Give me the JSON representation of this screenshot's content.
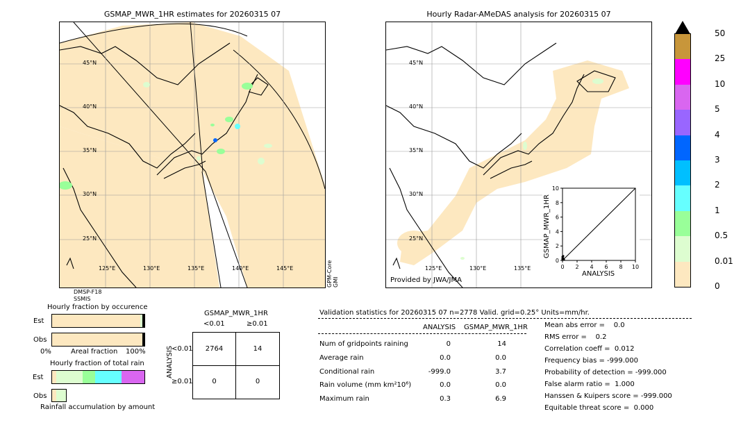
{
  "left_map": {
    "title": "GSMAP_MWR_1HR estimates for 20260315 07",
    "lat_labels": [
      "45°N",
      "40°N",
      "35°N",
      "30°N",
      "25°N"
    ],
    "lon_labels": [
      "125°E",
      "130°E",
      "135°E",
      "140°E",
      "145°E"
    ],
    "sensor_bottom": "DMSP-F18\nSSMIS",
    "sensor_right": "GPM-Core\nGMI"
  },
  "right_map": {
    "title": "Hourly Radar-AMeDAS analysis for 20260315 07",
    "lat_labels": [
      "45°N",
      "40°N",
      "35°N",
      "30°N",
      "25°N"
    ],
    "lon_labels": [
      "125°E",
      "130°E",
      "135°E"
    ],
    "credit": "Provided by JWA/JMA"
  },
  "colorbar": {
    "ticks": [
      "50",
      "25",
      "10",
      "5",
      "4",
      "3",
      "2",
      "1",
      "0.5",
      "0.01",
      "0"
    ],
    "colors": [
      "#c8963a",
      "#ff00ff",
      "#d966f0",
      "#9966ff",
      "#0066ff",
      "#00bfff",
      "#66ffff",
      "#99ff99",
      "#ddfdd0",
      "#fde8c0"
    ]
  },
  "occurrence": {
    "title": "Hourly fraction by occurence",
    "row_est": "Est",
    "row_obs": "Obs",
    "axis_left": "0%",
    "axis_mid": "Areal fraction",
    "axis_right": "100%"
  },
  "rain_fraction": {
    "title": "Hourly fraction of total rain",
    "row_est": "Est",
    "row_obs": "Obs",
    "footer": "Rainfall accumulation by amount"
  },
  "contingency": {
    "title": "GSMAP_MWR_1HR",
    "col1": "<0.01",
    "col2": "≥0.01",
    "ylabel": "ANALYSIS",
    "row1": "<0.01",
    "row2": "≥0.01",
    "cells": [
      "2764",
      "14",
      "0",
      "0"
    ]
  },
  "validation": {
    "header": "Validation statistics for 20260315 07  n=2778 Valid. grid=0.25° Units=mm/hr.",
    "col_analysis": "ANALYSIS",
    "col_model": "GSMAP_MWR_1HR",
    "rows": [
      {
        "label": "Num of gridpoints raining",
        "analysis": "0",
        "model": "14"
      },
      {
        "label": "Average rain",
        "analysis": "0.0",
        "model": "0.0"
      },
      {
        "label": "Conditional rain",
        "analysis": "-999.0",
        "model": "3.7"
      },
      {
        "label": "Rain volume (mm km²10⁶)",
        "analysis": "0.0",
        "model": "0.0"
      },
      {
        "label": "Maximum rain",
        "analysis": "0.3",
        "model": "6.9"
      }
    ],
    "scores": [
      "Mean abs error =    0.0",
      "RMS error =    0.2",
      "Correlation coeff =  0.012",
      "Frequency bias = -999.000",
      "Probability of detection = -999.000",
      "False alarm ratio =  1.000",
      "Hanssen & Kuipers score = -999.000",
      "Equitable threat score =  0.000"
    ]
  },
  "chart_data": {
    "type": "scatter",
    "xlabel": "ANALYSIS",
    "ylabel": "GSMAP_MWR_1HR",
    "xlim": [
      0,
      10
    ],
    "ylim": [
      0,
      10
    ],
    "x_ticks": [
      "0",
      "2",
      "4",
      "6",
      "8",
      "10"
    ],
    "y_ticks": [
      "0",
      "2",
      "4",
      "6",
      "8",
      "10"
    ],
    "points": [
      [
        0,
        0.1
      ],
      [
        0,
        0.2
      ],
      [
        0.1,
        0.3
      ],
      [
        0,
        0.5
      ],
      [
        0.2,
        0.1
      ],
      [
        0.1,
        0.6
      ],
      [
        0,
        0.3
      ]
    ],
    "one_to_one_line": true
  }
}
